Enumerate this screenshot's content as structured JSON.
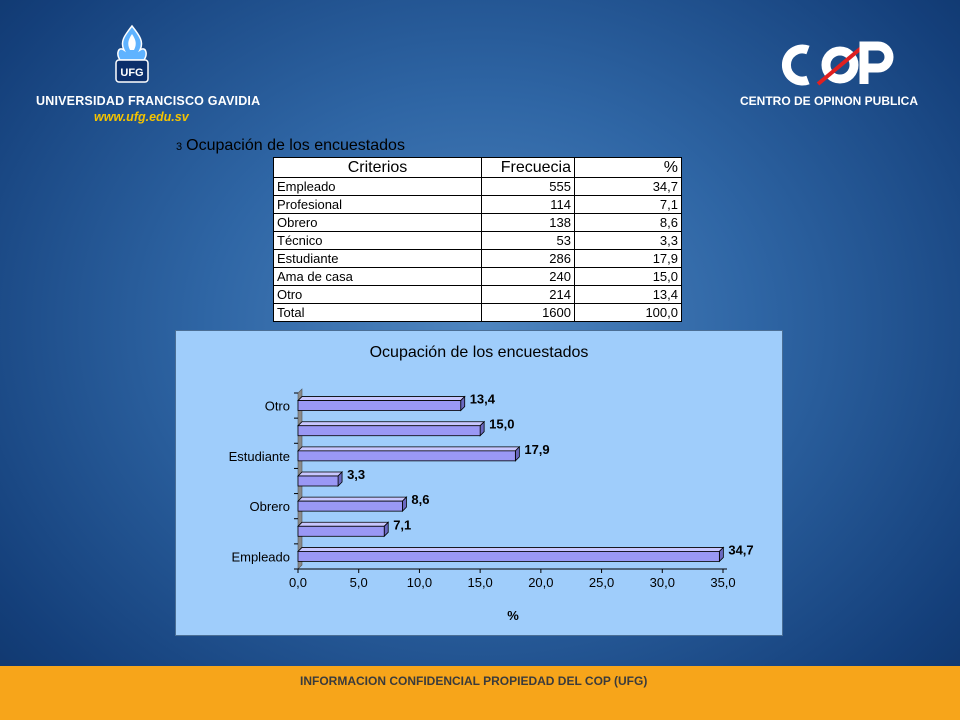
{
  "header": {
    "left_logo": {
      "badge": "UFG",
      "name": "UNIVERSIDAD FRANCISCO GAVIDIA",
      "url": "www.ufg.edu.sv"
    },
    "right_logo": {
      "mark": "COP",
      "name": "CENTRO DE OPINON PUBLICA"
    }
  },
  "table": {
    "number": "3",
    "title": "Ocupación de los encuestados",
    "headers": [
      "Criterios",
      "Frecuecia",
      "%"
    ],
    "rows": [
      [
        "Empleado",
        "555",
        "34,7"
      ],
      [
        "Profesional",
        "114",
        "7,1"
      ],
      [
        "Obrero",
        "138",
        "8,6"
      ],
      [
        "Técnico",
        "53",
        "3,3"
      ],
      [
        "Estudiante",
        "286",
        "17,9"
      ],
      [
        "Ama de casa",
        "240",
        "15,0"
      ],
      [
        "Otro",
        "214",
        "13,4"
      ],
      [
        "Total",
        "1600",
        "100,0"
      ]
    ]
  },
  "chart_data": {
    "type": "bar",
    "orientation": "horizontal",
    "title": "Ocupación de los encuestados",
    "xlabel": "%",
    "ylabel": "",
    "categories": [
      "Empleado",
      "Profesional",
      "Obrero",
      "Técnico",
      "Estudiante",
      "Ama de casa",
      "Otro"
    ],
    "visible_category_labels": [
      "Empleado",
      "Obrero",
      "Estudiante",
      "Otro"
    ],
    "values": [
      34.7,
      7.1,
      8.6,
      3.3,
      17.9,
      15.0,
      13.4
    ],
    "data_labels": [
      "34,7",
      "7,1",
      "8,6",
      "3,3",
      "17,9",
      "15,0",
      "13,4"
    ],
    "xlim": [
      0,
      35
    ],
    "xticks": [
      "0,0",
      "5,0",
      "10,0",
      "15,0",
      "20,0",
      "25,0",
      "30,0",
      "35,0"
    ],
    "bar_color": "#9a98f5",
    "grid": false,
    "legend": "none"
  },
  "footer": {
    "text": "INFORMACION CONFIDENCIAL PROPIEDAD DEL COP (UFG)"
  }
}
